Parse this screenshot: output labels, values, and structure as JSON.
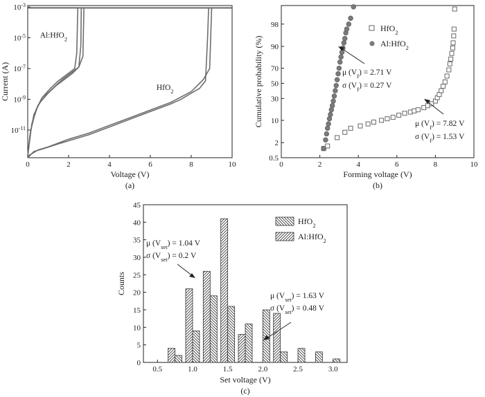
{
  "chart_data": [
    {
      "panel": "(a)",
      "type": "line",
      "xlabel": "Voltage (V)",
      "ylabel": "Current (A)",
      "xlim": [
        0,
        10
      ],
      "ylim_log10": [
        -12.8,
        -2.9
      ],
      "yscale": "log",
      "x_ticks": [
        "0",
        "2",
        "4",
        "6",
        "8",
        "10"
      ],
      "y_ticks": [
        {
          "base": "10",
          "exp": "-3",
          "log10": -3
        },
        {
          "base": "10",
          "exp": "-5",
          "log10": -5
        },
        {
          "base": "10",
          "exp": "-7",
          "log10": -7
        },
        {
          "base": "10",
          "exp": "-9",
          "log10": -9
        },
        {
          "base": "10",
          "exp": "-11",
          "log10": -11
        }
      ],
      "compliance_log10": -3.05,
      "annotations": [
        {
          "text": "Al:HfO",
          "sub": "2",
          "x": 0.6,
          "y_log10": -5.0
        },
        {
          "text": "HfO",
          "sub": "2",
          "x": 6.3,
          "y_log10": -8.4
        }
      ],
      "series": [
        {
          "name": "Al:HfO2",
          "color": "#6d6d6d",
          "sweeps": [
            {
              "x": [
                0.0,
                0.1,
                0.3,
                0.6,
                1.0,
                1.4,
                1.8,
                2.2,
                2.5,
                2.6,
                2.62,
                10.0
              ],
              "y_log10": [
                -12.7,
                -11.4,
                -10.0,
                -9.2,
                -8.6,
                -8.1,
                -7.7,
                -7.3,
                -6.9,
                -5.5,
                -3.05,
                -3.05
              ]
            },
            {
              "x": [
                0.0,
                0.15,
                0.4,
                0.7,
                1.1,
                1.5,
                1.9,
                2.3,
                2.4,
                2.45,
                10.0
              ],
              "y_log10": [
                -12.7,
                -11.0,
                -9.7,
                -8.9,
                -8.3,
                -7.8,
                -7.4,
                -7.0,
                -6.0,
                -3.05,
                -3.05
              ]
            },
            {
              "x": [
                0.0,
                0.2,
                0.5,
                0.9,
                1.3,
                1.7,
                2.1,
                2.5,
                2.7,
                2.75,
                10.0
              ],
              "y_log10": [
                -12.7,
                -10.6,
                -9.4,
                -8.7,
                -8.2,
                -7.7,
                -7.3,
                -6.9,
                -6.2,
                -3.05,
                -3.05
              ]
            }
          ]
        },
        {
          "name": "HfO2",
          "color": "#6d6d6d",
          "sweeps": [
            {
              "x": [
                0.0,
                0.3,
                0.8,
                1.5,
                2.0,
                3.0,
                4.0,
                5.0,
                6.0,
                7.0,
                7.5,
                8.0,
                8.4,
                8.7,
                8.8,
                8.85,
                10.0
              ],
              "y_log10": [
                -12.8,
                -12.4,
                -12.2,
                -11.9,
                -11.7,
                -11.3,
                -10.8,
                -10.3,
                -9.8,
                -9.3,
                -9.0,
                -8.6,
                -8.3,
                -7.8,
                -5.0,
                -3.05,
                -3.05
              ]
            },
            {
              "x": [
                0.0,
                0.5,
                1.0,
                2.0,
                3.0,
                4.0,
                5.0,
                6.0,
                7.0,
                8.0,
                8.3,
                8.6,
                8.9,
                9.0,
                10.0
              ],
              "y_log10": [
                -12.7,
                -12.3,
                -12.1,
                -11.6,
                -11.2,
                -10.7,
                -10.2,
                -9.7,
                -9.2,
                -8.5,
                -8.1,
                -7.7,
                -7.0,
                -3.05,
                -3.05
              ]
            }
          ]
        }
      ]
    },
    {
      "panel": "(b)",
      "type": "scatter",
      "xlabel": "Forming voltage (V)",
      "ylabel": "Cumulative probability (%)",
      "xlim": [
        0,
        10
      ],
      "yscale": "probability",
      "x_ticks": [
        "0",
        "2",
        "4",
        "6",
        "8",
        "10"
      ],
      "y_ticks": [
        0.5,
        2,
        10,
        30,
        50,
        70,
        90,
        98
      ],
      "legend": [
        {
          "label": "HfO",
          "sub": "2",
          "marker": "open-square"
        },
        {
          "label": "Al:HfO",
          "sub": "2",
          "marker": "filled-circle"
        }
      ],
      "legend_placement": "top-right",
      "annotations": [
        {
          "lines": [
            {
              "pre": "μ (V",
              "sub": "f",
              "post": ") = 2.71 V"
            },
            {
              "pre": "σ (V",
              "sub": "f",
              "post": ") = 0.27 V"
            }
          ]
        },
        {
          "lines": [
            {
              "pre": "μ (V",
              "sub": "f",
              "post": ") = 7.82 V"
            },
            {
              "pre": "σ (V",
              "sub": "f",
              "post": ") = 1.53 V"
            }
          ]
        }
      ],
      "series": [
        {
          "name": "HfO2",
          "marker": "open-square",
          "color": "#666666",
          "x": [
            2.2,
            2.4,
            2.9,
            3.3,
            3.6,
            4.1,
            4.5,
            4.8,
            5.2,
            5.5,
            5.8,
            6.1,
            6.4,
            6.7,
            6.9,
            7.1,
            7.4,
            7.6,
            7.8,
            8.0,
            8.1,
            8.2,
            8.3,
            8.4,
            8.5,
            8.6,
            8.7,
            8.75,
            8.8,
            8.85,
            8.9,
            8.92,
            8.95,
            8.97,
            9.0
          ],
          "y": [
            1.2,
            1.5,
            3,
            4.5,
            6,
            7,
            8,
            9,
            10,
            11,
            12,
            13.5,
            15,
            16,
            17,
            18,
            20,
            22,
            24,
            27,
            31,
            35,
            40,
            46,
            52,
            60,
            68,
            75,
            80,
            85,
            89,
            92,
            95,
            97,
            99.5
          ]
        },
        {
          "name": "Al:HfO2",
          "marker": "filled-circle",
          "color": "#7a7a7a",
          "x": [
            2.2,
            2.3,
            2.35,
            2.4,
            2.45,
            2.5,
            2.55,
            2.6,
            2.65,
            2.7,
            2.75,
            2.8,
            2.85,
            2.9,
            2.95,
            3.0,
            3.05,
            3.1,
            3.15,
            3.2,
            3.25,
            3.3,
            3.35,
            3.4,
            3.5,
            3.6,
            3.75
          ],
          "y": [
            1.2,
            2.5,
            4,
            6,
            8,
            11,
            14,
            18,
            22,
            27,
            33,
            40,
            47,
            55,
            63,
            70,
            77,
            82,
            86,
            89,
            92,
            94,
            96,
            97,
            98,
            98.8,
            99.6
          ]
        }
      ]
    },
    {
      "panel": "(c)",
      "type": "bar",
      "xlabel": "Set voltage (V)",
      "ylabel": "Counts",
      "xlim": [
        0.3,
        3.2
      ],
      "ylim": [
        0,
        45
      ],
      "x_ticks": [
        "0.5",
        "1.0",
        "1.5",
        "2.0",
        "2.5",
        "3.0"
      ],
      "y_ticks": [
        "0",
        "5",
        "10",
        "15",
        "20",
        "25",
        "30",
        "35",
        "40",
        "45"
      ],
      "bin_centers": [
        0.75,
        1.0,
        1.25,
        1.5,
        1.75,
        2.0,
        2.25,
        2.5,
        2.75,
        3.0
      ],
      "legend": [
        {
          "label": "HfO",
          "sub": "2",
          "pattern": "back-hatch"
        },
        {
          "label": "Al:HfO",
          "sub": "2",
          "pattern": "fwd-hatch"
        }
      ],
      "legend_placement": "top-right",
      "annotations": [
        {
          "lines": [
            {
              "pre": "μ (V",
              "sub": "set",
              "post": ") = 1.04 V"
            },
            {
              "pre": "σ (V",
              "sub": "set",
              "post": ") = 0.2 V"
            }
          ]
        },
        {
          "lines": [
            {
              "pre": "μ (V",
              "sub": "set",
              "post": ") = 1.63 V"
            },
            {
              "pre": "σ (V",
              "sub": "set",
              "post": ") = 0.48 V"
            }
          ]
        }
      ],
      "series": [
        {
          "name": "HfO2",
          "pattern": "back-hatch",
          "values": [
            2,
            9,
            19,
            16,
            11,
            15,
            3,
            4,
            3,
            1
          ]
        },
        {
          "name": "Al:HfO2",
          "pattern": "fwd-hatch",
          "values": [
            4,
            21,
            26,
            41,
            8,
            0,
            14,
            0,
            0,
            0
          ]
        }
      ]
    }
  ]
}
